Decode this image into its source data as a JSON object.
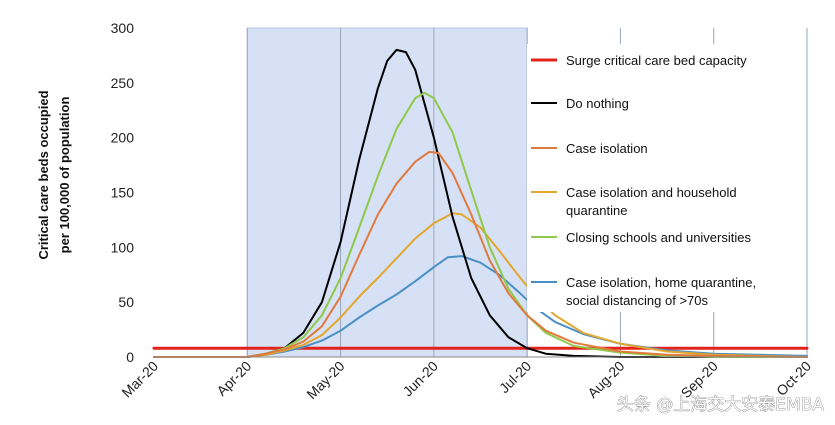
{
  "chart_data": {
    "type": "line",
    "ylabel_lines": [
      "Critical care beds occupied",
      "per 100,000 of population"
    ],
    "xlabel": "",
    "ylim": [
      0,
      300
    ],
    "yticks": [
      0,
      50,
      100,
      150,
      200,
      250,
      300
    ],
    "xlim": [
      0,
      7
    ],
    "xticks": [
      {
        "x": 0,
        "label": "Mar-20"
      },
      {
        "x": 1,
        "label": "Apr-20"
      },
      {
        "x": 2,
        "label": "May-20"
      },
      {
        "x": 3,
        "label": "Jun-20"
      },
      {
        "x": 4,
        "label": "Jul-20"
      },
      {
        "x": 5,
        "label": "Aug-20"
      },
      {
        "x": 6,
        "label": "Sep-20"
      },
      {
        "x": 7,
        "label": "Oct-20"
      }
    ],
    "grid": true,
    "shaded_interval": [
      1.0,
      4.0
    ],
    "series": [
      {
        "name": "Surge critical care bed capacity",
        "color": "#e3231b",
        "width": 3,
        "points": [
          [
            0,
            8
          ],
          [
            7,
            8
          ]
        ]
      },
      {
        "name": "Do nothing",
        "color": "#000000",
        "width": 2,
        "points": [
          [
            0,
            0
          ],
          [
            1,
            0
          ],
          [
            1.2,
            3
          ],
          [
            1.4,
            8
          ],
          [
            1.6,
            22
          ],
          [
            1.8,
            50
          ],
          [
            2.0,
            105
          ],
          [
            2.2,
            180
          ],
          [
            2.4,
            245
          ],
          [
            2.5,
            270
          ],
          [
            2.6,
            280
          ],
          [
            2.7,
            278
          ],
          [
            2.8,
            262
          ],
          [
            3.0,
            200
          ],
          [
            3.2,
            128
          ],
          [
            3.4,
            72
          ],
          [
            3.6,
            38
          ],
          [
            3.8,
            18
          ],
          [
            4.0,
            8
          ],
          [
            4.2,
            3
          ],
          [
            4.5,
            1
          ],
          [
            5,
            0
          ],
          [
            7,
            0
          ]
        ]
      },
      {
        "name": "Case isolation",
        "color": "#e07a3f",
        "width": 2,
        "points": [
          [
            0,
            0
          ],
          [
            1,
            0
          ],
          [
            1.2,
            3
          ],
          [
            1.4,
            7
          ],
          [
            1.6,
            14
          ],
          [
            1.8,
            28
          ],
          [
            2.0,
            55
          ],
          [
            2.2,
            93
          ],
          [
            2.4,
            130
          ],
          [
            2.6,
            158
          ],
          [
            2.8,
            178
          ],
          [
            2.95,
            187
          ],
          [
            3.05,
            186
          ],
          [
            3.2,
            168
          ],
          [
            3.4,
            130
          ],
          [
            3.6,
            88
          ],
          [
            3.8,
            58
          ],
          [
            4.0,
            38
          ],
          [
            4.2,
            24
          ],
          [
            4.5,
            13
          ],
          [
            5,
            5
          ],
          [
            5.5,
            2
          ],
          [
            6,
            1
          ],
          [
            7,
            0
          ]
        ]
      },
      {
        "name": "Case isolation and household quarantine",
        "color": "#e2a72e",
        "width": 2,
        "points": [
          [
            0,
            0
          ],
          [
            1,
            0
          ],
          [
            1.2,
            2
          ],
          [
            1.4,
            6
          ],
          [
            1.6,
            11
          ],
          [
            1.8,
            20
          ],
          [
            2.0,
            36
          ],
          [
            2.2,
            55
          ],
          [
            2.4,
            72
          ],
          [
            2.6,
            90
          ],
          [
            2.8,
            108
          ],
          [
            3.0,
            122
          ],
          [
            3.2,
            131
          ],
          [
            3.3,
            130
          ],
          [
            3.5,
            118
          ],
          [
            3.7,
            97
          ],
          [
            3.9,
            75
          ],
          [
            4.1,
            54
          ],
          [
            4.3,
            38
          ],
          [
            4.6,
            22
          ],
          [
            5,
            12
          ],
          [
            5.5,
            5
          ],
          [
            6,
            2
          ],
          [
            7,
            0
          ]
        ]
      },
      {
        "name": "Closing schools and universities",
        "color": "#8fc84a",
        "width": 2,
        "points": [
          [
            0,
            0
          ],
          [
            1,
            0
          ],
          [
            1.2,
            3
          ],
          [
            1.4,
            8
          ],
          [
            1.6,
            18
          ],
          [
            1.8,
            38
          ],
          [
            2.0,
            72
          ],
          [
            2.2,
            118
          ],
          [
            2.4,
            165
          ],
          [
            2.6,
            208
          ],
          [
            2.8,
            236
          ],
          [
            2.9,
            241
          ],
          [
            3.0,
            236
          ],
          [
            3.2,
            205
          ],
          [
            3.4,
            152
          ],
          [
            3.6,
            100
          ],
          [
            3.8,
            62
          ],
          [
            4.0,
            38
          ],
          [
            4.2,
            22
          ],
          [
            4.5,
            10
          ],
          [
            5,
            4
          ],
          [
            5.5,
            1
          ],
          [
            6,
            0
          ],
          [
            7,
            0
          ]
        ]
      },
      {
        "name": "Case isolation, home quarantine, social distancing of >70s",
        "color": "#4a90c4",
        "width": 2,
        "points": [
          [
            0,
            0
          ],
          [
            1,
            0
          ],
          [
            1.2,
            2
          ],
          [
            1.4,
            5
          ],
          [
            1.6,
            9
          ],
          [
            1.8,
            15
          ],
          [
            2.0,
            24
          ],
          [
            2.2,
            36
          ],
          [
            2.4,
            47
          ],
          [
            2.6,
            57
          ],
          [
            2.8,
            69
          ],
          [
            3.0,
            82
          ],
          [
            3.15,
            91
          ],
          [
            3.3,
            92
          ],
          [
            3.5,
            86
          ],
          [
            3.7,
            75
          ],
          [
            3.9,
            60
          ],
          [
            4.1,
            44
          ],
          [
            4.3,
            32
          ],
          [
            4.6,
            21
          ],
          [
            5,
            12
          ],
          [
            5.5,
            6
          ],
          [
            6,
            3
          ],
          [
            7,
            1
          ]
        ]
      }
    ],
    "legend_placement": "right",
    "legend": [
      {
        "lines": [
          "Surge critical care bed capacity"
        ],
        "color": "#e3231b",
        "width": 3
      },
      {
        "lines": [
          "Do nothing"
        ],
        "color": "#000000",
        "width": 2
      },
      {
        "lines": [
          "Case isolation"
        ],
        "color": "#e07a3f",
        "width": 2
      },
      {
        "lines": [
          "Case isolation and household",
          "quarantine"
        ],
        "color": "#e2a72e",
        "width": 2
      },
      {
        "lines": [
          "Closing schools and universities"
        ],
        "color": "#8fc84a",
        "width": 2
      },
      {
        "lines": [
          "Case isolation, home quarantine,",
          "social distancing of >70s"
        ],
        "color": "#4a90c4",
        "width": 2
      }
    ]
  },
  "watermark": "头条 @上海交大安泰EMBA"
}
